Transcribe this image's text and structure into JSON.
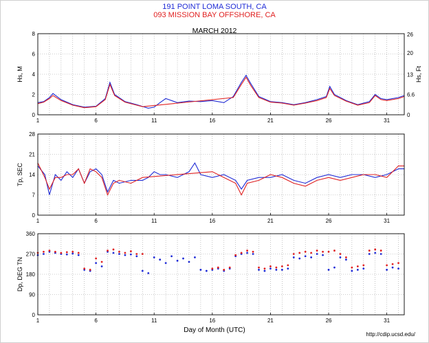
{
  "header": {
    "line1": "191 POINT LOMA SOUTH, CA",
    "line2": "093 MISSION BAY OFFSHORE, CA",
    "month": "MARCH 2012",
    "xlabel": "Day of Month (UTC)",
    "credit": "http://cdip.ucsd.edu/"
  },
  "colors": {
    "series1": "#1f2bd6",
    "series2": "#e02020",
    "grid": "#9a9a9a"
  },
  "chart_data": [
    {
      "type": "line",
      "ylabel": "Hs, M",
      "ylabel_right": "Hs, Ft",
      "xlim": [
        1,
        32.5
      ],
      "ylim": [
        0,
        8
      ],
      "x_ticks": [
        1,
        6,
        11,
        16,
        21,
        26,
        31
      ],
      "y_ticks": [
        0,
        2,
        4,
        6,
        8
      ],
      "right_ticks": [
        "0",
        "6.6",
        "13",
        "20",
        "26"
      ],
      "right_tick_values": [
        0,
        2,
        3.96,
        6.1,
        7.92
      ],
      "grid": true,
      "series": [
        {
          "name": "191 POINT LOMA SOUTH, CA",
          "x": [
            1,
            1.5,
            2,
            2.3,
            3,
            4,
            5,
            6,
            6.8,
            7.2,
            7.6,
            8.5,
            9.5,
            10.5,
            11,
            11.5,
            12,
            13,
            14,
            15,
            16,
            17,
            17.8,
            18.5,
            18.9,
            19.3,
            20,
            21,
            22,
            23,
            24,
            25,
            25.8,
            26.1,
            26.5,
            27.5,
            28.5,
            29.5,
            30,
            30.5,
            31,
            32,
            32.5
          ],
          "y": [
            1.2,
            1.3,
            1.7,
            2.1,
            1.5,
            1.0,
            0.75,
            0.85,
            1.6,
            3.2,
            2.0,
            1.3,
            1.0,
            0.65,
            0.75,
            1.2,
            1.6,
            1.2,
            1.35,
            1.3,
            1.4,
            1.2,
            1.8,
            3.2,
            3.9,
            3.1,
            1.8,
            1.3,
            1.2,
            1.0,
            1.2,
            1.5,
            1.8,
            2.8,
            2.0,
            1.4,
            1.0,
            1.3,
            2.0,
            1.6,
            1.5,
            1.7,
            1.9
          ]
        },
        {
          "name": "093 MISSION BAY OFFSHORE, CA",
          "x": [
            1,
            1.5,
            2,
            2.3,
            3,
            4,
            5,
            6,
            6.8,
            7.2,
            7.6,
            8.5,
            9.5,
            10,
            17.8,
            18.5,
            18.9,
            19.3,
            20,
            21,
            22,
            23,
            24,
            25,
            25.8,
            26.1,
            26.5,
            27.5,
            28.5,
            29.5,
            30,
            30.5,
            31,
            32,
            32.5
          ],
          "y": [
            1.1,
            1.25,
            1.6,
            1.9,
            1.4,
            0.95,
            0.7,
            0.8,
            1.5,
            3.0,
            1.9,
            1.25,
            0.95,
            0.8,
            1.7,
            3.0,
            3.7,
            2.9,
            1.7,
            1.25,
            1.15,
            0.95,
            1.15,
            1.4,
            1.7,
            2.6,
            1.9,
            1.35,
            0.95,
            1.2,
            1.9,
            1.5,
            1.4,
            1.6,
            1.8
          ]
        }
      ]
    },
    {
      "type": "line",
      "ylabel": "Tp, SEC",
      "xlim": [
        1,
        32.5
      ],
      "ylim": [
        0,
        28
      ],
      "x_ticks": [
        1,
        6,
        11,
        16,
        21,
        26,
        31
      ],
      "y_ticks": [
        0,
        7,
        14,
        21,
        28
      ],
      "grid": true,
      "series": [
        {
          "name": "191 POINT LOMA SOUTH, CA",
          "x": [
            1,
            1.6,
            2,
            2.5,
            3,
            3.5,
            4,
            4.5,
            5,
            5.5,
            6,
            6.5,
            7,
            7.5,
            8,
            9,
            10,
            10.5,
            11,
            11.5,
            12,
            13,
            14,
            14.5,
            15,
            16,
            17,
            18,
            18.5,
            19,
            20,
            21,
            22,
            23,
            24,
            25,
            26,
            27,
            28,
            29,
            30,
            31,
            32,
            32.5
          ],
          "y": [
            17,
            14,
            7,
            14,
            12,
            15,
            13,
            16,
            11,
            15,
            16,
            14,
            8,
            12,
            11,
            12,
            12,
            13,
            15,
            14,
            14,
            13,
            15,
            18,
            14,
            13,
            14,
            12,
            9,
            12,
            13,
            13,
            14,
            12,
            11,
            13,
            14,
            13,
            14,
            14,
            13,
            14,
            16,
            16
          ]
        },
        {
          "name": "093 MISSION BAY OFFSHORE, CA",
          "x": [
            1,
            1.6,
            2,
            2.5,
            3,
            3.5,
            4,
            4.5,
            5,
            5.5,
            6,
            6.5,
            7,
            7.5,
            8,
            9,
            10,
            16,
            17,
            18,
            18.5,
            19,
            20,
            21,
            22,
            23,
            24,
            25,
            26,
            27,
            28,
            29,
            30,
            31,
            32,
            32.5
          ],
          "y": [
            18,
            13,
            9,
            13,
            13,
            14,
            14,
            16,
            11,
            16,
            15,
            13,
            7,
            11,
            12,
            11,
            13,
            15,
            13,
            11,
            7,
            11,
            12,
            14,
            13,
            11,
            10,
            12,
            13,
            12,
            13,
            14,
            14,
            13,
            17,
            17
          ]
        }
      ]
    },
    {
      "type": "scatter",
      "ylabel": "Dp, DEG TN",
      "xlim": [
        1,
        32.5
      ],
      "ylim": [
        0,
        360
      ],
      "x_ticks": [
        1,
        6,
        11,
        16,
        21,
        26,
        31
      ],
      "y_ticks": [
        0,
        90,
        180,
        270,
        360
      ],
      "grid": true,
      "series": [
        {
          "name": "191 POINT LOMA SOUTH, CA",
          "x": [
            1,
            1.5,
            2,
            2.5,
            3,
            3.5,
            4,
            4.5,
            5,
            5.5,
            6,
            6.5,
            7,
            7.5,
            8,
            8.5,
            9,
            9.5,
            10,
            10.5,
            11,
            11.5,
            12,
            12.5,
            13,
            13.5,
            14,
            14.5,
            15,
            15.5,
            16,
            16.5,
            17,
            17.5,
            18,
            18.5,
            19,
            19.5,
            20,
            20.5,
            21,
            21.5,
            22,
            22.5,
            23,
            23.5,
            24,
            24.5,
            25,
            25.5,
            26,
            26.5,
            27,
            27.5,
            28,
            28.5,
            29,
            29.5,
            30,
            30.5,
            31,
            31.5,
            32
          ],
          "y": [
            265,
            270,
            280,
            275,
            270,
            268,
            272,
            265,
            200,
            195,
            230,
            215,
            280,
            275,
            270,
            265,
            268,
            260,
            195,
            185,
            255,
            245,
            230,
            260,
            240,
            250,
            235,
            255,
            200,
            195,
            200,
            205,
            195,
            205,
            260,
            270,
            275,
            270,
            200,
            195,
            205,
            200,
            200,
            205,
            255,
            250,
            260,
            255,
            270,
            265,
            200,
            210,
            255,
            245,
            195,
            200,
            205,
            270,
            275,
            270,
            200,
            210,
            205
          ]
        },
        {
          "name": "093 MISSION BAY OFFSHORE, CA",
          "x": [
            1,
            1.5,
            2,
            2.5,
            3,
            3.5,
            4,
            4.5,
            5,
            5.5,
            6,
            6.5,
            7,
            7.5,
            8,
            8.5,
            9,
            9.5,
            10,
            16,
            16.5,
            17,
            17.5,
            18,
            18.5,
            19,
            19.5,
            20,
            20.5,
            21,
            21.5,
            22,
            22.5,
            23,
            23.5,
            24,
            24.5,
            25,
            25.5,
            26,
            26.5,
            27,
            27.5,
            28,
            28.5,
            29,
            29.5,
            30,
            30.5,
            31,
            31.5,
            32
          ],
          "y": [
            275,
            280,
            285,
            280,
            275,
            278,
            280,
            275,
            205,
            200,
            250,
            235,
            285,
            290,
            280,
            275,
            282,
            270,
            270,
            205,
            210,
            200,
            210,
            265,
            275,
            285,
            280,
            210,
            205,
            215,
            210,
            215,
            220,
            270,
            275,
            280,
            275,
            285,
            280,
            280,
            285,
            270,
            255,
            210,
            215,
            220,
            285,
            290,
            285,
            220,
            225,
            230
          ]
        }
      ]
    }
  ]
}
